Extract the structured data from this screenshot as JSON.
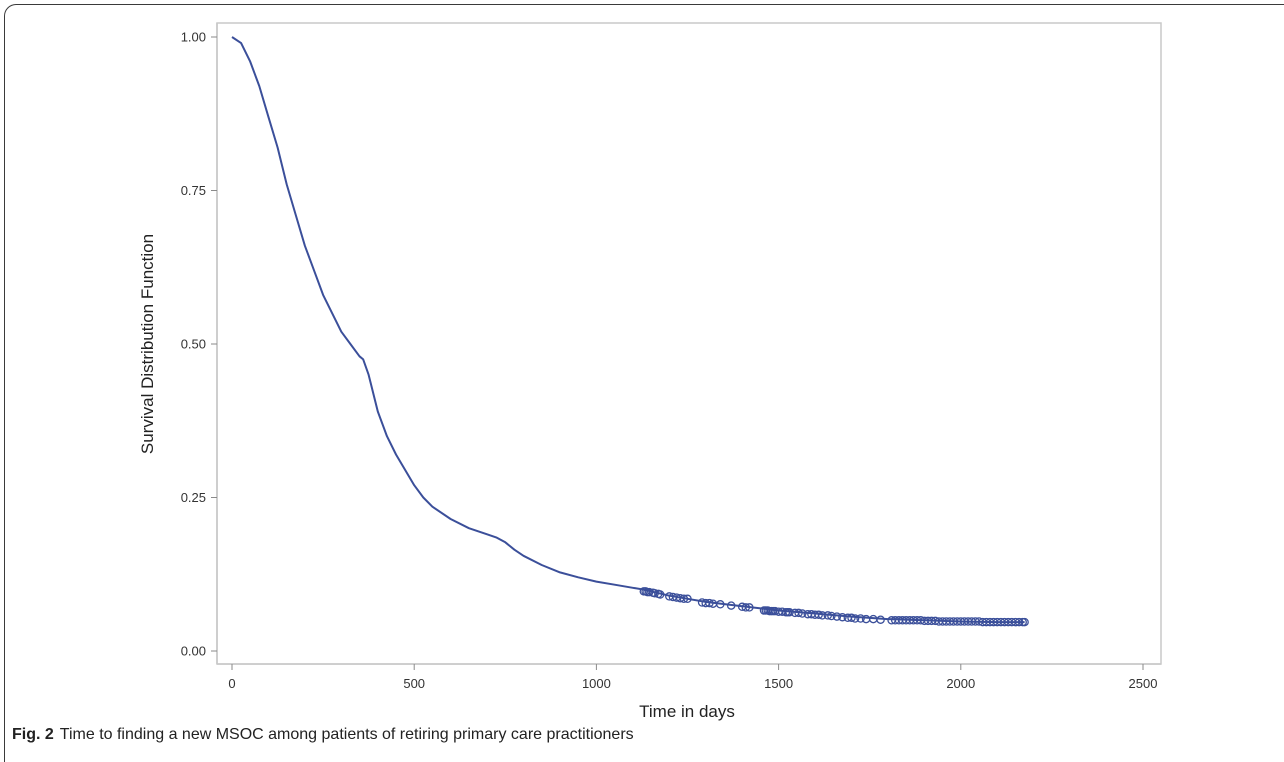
{
  "caption": {
    "label": "Fig. 2",
    "text": "Time to finding a new MSOC among patients of retiring primary care practitioners"
  },
  "chart_data": {
    "type": "line",
    "title": "",
    "xlabel": "Time in days",
    "ylabel": "Survival Distribution Function",
    "xlim": [
      0,
      2500
    ],
    "ylim": [
      0,
      1
    ],
    "x_ticks": [
      0,
      500,
      1000,
      1500,
      2000,
      2500
    ],
    "x_tick_labels": [
      "0",
      "500",
      "1000",
      "1500",
      "2000",
      "2500"
    ],
    "y_ticks": [
      0,
      0.25,
      0.5,
      0.75,
      1
    ],
    "y_tick_labels": [
      "0.00",
      "0.25",
      "0.50",
      "0.75",
      "1.00"
    ],
    "grid": false,
    "line_color": "#3b4f9a",
    "series": [
      {
        "name": "",
        "kind": "step",
        "x": [
          0,
          25,
          50,
          75,
          100,
          125,
          150,
          175,
          200,
          225,
          250,
          275,
          300,
          325,
          350,
          360,
          375,
          400,
          425,
          450,
          475,
          500,
          525,
          550,
          600,
          650,
          700,
          725,
          750,
          775,
          800,
          850,
          900,
          950,
          1000,
          1050,
          1100,
          1130,
          1200,
          1250,
          1300,
          1400,
          1500,
          1600,
          1700,
          1800,
          1900,
          2000,
          2100,
          2175
        ],
        "y": [
          1.0,
          0.99,
          0.96,
          0.92,
          0.87,
          0.82,
          0.76,
          0.71,
          0.66,
          0.62,
          0.58,
          0.55,
          0.52,
          0.5,
          0.48,
          0.475,
          0.45,
          0.39,
          0.35,
          0.32,
          0.295,
          0.27,
          0.25,
          0.235,
          0.215,
          0.2,
          0.19,
          0.185,
          0.177,
          0.165,
          0.155,
          0.14,
          0.128,
          0.12,
          0.113,
          0.108,
          0.103,
          0.1,
          0.09,
          0.085,
          0.08,
          0.073,
          0.066,
          0.061,
          0.056,
          0.052,
          0.05,
          0.048,
          0.047,
          0.047
        ]
      }
    ],
    "censored_markers": {
      "name": "",
      "marker": "open-circle",
      "x": [
        1130,
        1135,
        1140,
        1145,
        1155,
        1160,
        1170,
        1175,
        1200,
        1210,
        1220,
        1230,
        1240,
        1250,
        1290,
        1300,
        1310,
        1320,
        1340,
        1370,
        1400,
        1410,
        1420,
        1460,
        1465,
        1470,
        1475,
        1480,
        1485,
        1490,
        1500,
        1510,
        1520,
        1525,
        1530,
        1545,
        1555,
        1565,
        1580,
        1590,
        1600,
        1610,
        1620,
        1635,
        1645,
        1660,
        1675,
        1690,
        1700,
        1710,
        1725,
        1740,
        1760,
        1780,
        1810,
        1820,
        1830,
        1840,
        1850,
        1860,
        1870,
        1880,
        1890,
        1900,
        1910,
        1920,
        1930,
        1940,
        1950,
        1960,
        1970,
        1980,
        1990,
        2000,
        2010,
        2020,
        2030,
        2040,
        2050,
        2060,
        2070,
        2080,
        2090,
        2100,
        2110,
        2120,
        2130,
        2140,
        2150,
        2160,
        2170,
        2175
      ],
      "y": [
        0.097,
        0.097,
        0.096,
        0.096,
        0.095,
        0.094,
        0.093,
        0.092,
        0.089,
        0.088,
        0.087,
        0.086,
        0.085,
        0.085,
        0.079,
        0.078,
        0.078,
        0.077,
        0.076,
        0.074,
        0.072,
        0.071,
        0.071,
        0.066,
        0.066,
        0.066,
        0.065,
        0.065,
        0.065,
        0.065,
        0.064,
        0.064,
        0.063,
        0.063,
        0.063,
        0.062,
        0.062,
        0.061,
        0.06,
        0.06,
        0.059,
        0.059,
        0.058,
        0.058,
        0.057,
        0.056,
        0.055,
        0.054,
        0.054,
        0.053,
        0.053,
        0.052,
        0.052,
        0.051,
        0.05,
        0.05,
        0.05,
        0.05,
        0.05,
        0.05,
        0.05,
        0.05,
        0.05,
        0.049,
        0.049,
        0.049,
        0.049,
        0.048,
        0.048,
        0.048,
        0.048,
        0.048,
        0.048,
        0.048,
        0.048,
        0.048,
        0.048,
        0.048,
        0.048,
        0.047,
        0.047,
        0.047,
        0.047,
        0.047,
        0.047,
        0.047,
        0.047,
        0.047,
        0.047,
        0.047,
        0.047,
        0.047
      ]
    }
  }
}
